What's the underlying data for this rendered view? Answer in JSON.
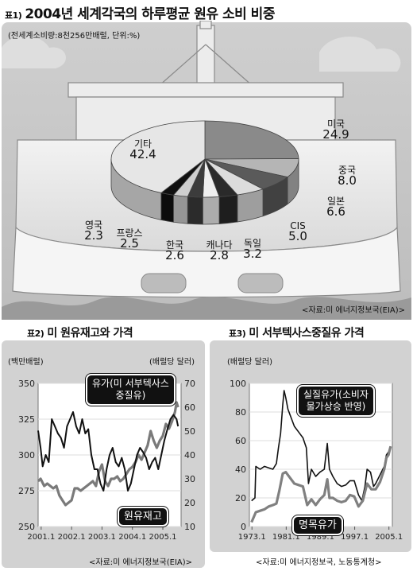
{
  "chart1": {
    "number": "표1)",
    "title": "2004년 세계각국의 하루평균 원유 소비 비중",
    "subtitle": "(전세계소비량:8천256만배럴, 단위:%)",
    "source": "<자료:미 에너지정보국(EIA)>"
  },
  "chart2": {
    "number": "표2)",
    "title": "미 원유재고와 가격",
    "left_unit": "(백만배럴)",
    "right_unit": "(배럴당 달러)",
    "callout_price_line1": "유가(미 서부텍사스",
    "callout_price_line2": "중질유)",
    "callout_inventory": "원유재고",
    "source": "<자료:미 에너지정보국(EIA)>"
  },
  "chart3": {
    "number": "표3)",
    "title": "미 서부텍사스중질유 가격",
    "unit": "(배럴당 달러)",
    "callout_real_line1": "실질유가(소비자",
    "callout_real_line2": "물가상승 반영)",
    "callout_nominal": "명목유가",
    "source": "<자료:미 에너지정보국, 노동통계청>"
  },
  "chart_data": [
    {
      "type": "pie",
      "title": "2004년 세계각국의 하루평균 원유 소비 비중",
      "categories": [
        "미국",
        "중국",
        "일본",
        "CIS",
        "독일",
        "캐나다",
        "한국",
        "프랑스",
        "영국",
        "기타"
      ],
      "values": [
        24.9,
        8.0,
        6.6,
        5.0,
        3.2,
        2.8,
        2.6,
        2.5,
        2.3,
        42.4
      ],
      "value_labels": [
        "24.9",
        "8.0",
        "6.6",
        "5.0",
        "3.2",
        "2.8",
        "2.6",
        "2.5",
        "2.3",
        "42.4"
      ],
      "colors": [
        "#8a8a8a",
        "#b5b5b5",
        "#5a5a5a",
        "#dcdcdc",
        "#2a2a2a",
        "#efefef",
        "#3c3c3c",
        "#cfcfcf",
        "#101010",
        "#e6e6e6"
      ]
    },
    {
      "type": "line",
      "title": "미 원유재고와 가격",
      "x_ticks": [
        "2001.1",
        "2002.1",
        "2003.1",
        "2004.1",
        "2005.1"
      ],
      "xlim": [
        2001.0,
        2005.7
      ],
      "y_left": {
        "label": "(백만배럴)",
        "lim": [
          250,
          350
        ],
        "ticks": [
          250,
          275,
          300,
          325,
          350
        ]
      },
      "y_right": {
        "label": "(배럴당 달러)",
        "lim": [
          10,
          70
        ],
        "ticks": [
          10,
          20,
          30,
          40,
          50,
          60,
          70
        ]
      },
      "series": [
        {
          "name": "유가(미 서부텍사스 중질유)",
          "axis": "right",
          "color": "#7a7a7a",
          "points": [
            [
              2001.0,
              29
            ],
            [
              2001.08,
              30
            ],
            [
              2001.2,
              27
            ],
            [
              2001.3,
              28
            ],
            [
              2001.4,
              27
            ],
            [
              2001.5,
              26
            ],
            [
              2001.6,
              27
            ],
            [
              2001.7,
              23
            ],
            [
              2001.8,
              21
            ],
            [
              2001.9,
              19
            ],
            [
              2002.0,
              20
            ],
            [
              2002.1,
              21
            ],
            [
              2002.2,
              26
            ],
            [
              2002.3,
              26
            ],
            [
              2002.4,
              25
            ],
            [
              2002.5,
              26
            ],
            [
              2002.6,
              27
            ],
            [
              2002.7,
              28
            ],
            [
              2002.8,
              29
            ],
            [
              2002.9,
              27
            ],
            [
              2003.0,
              33
            ],
            [
              2003.1,
              36
            ],
            [
              2003.2,
              29
            ],
            [
              2003.3,
              27
            ],
            [
              2003.4,
              30
            ],
            [
              2003.5,
              30
            ],
            [
              2003.6,
              31
            ],
            [
              2003.7,
              29
            ],
            [
              2003.8,
              30
            ],
            [
              2003.9,
              32
            ],
            [
              2004.0,
              34
            ],
            [
              2004.1,
              35
            ],
            [
              2004.2,
              37
            ],
            [
              2004.3,
              40
            ],
            [
              2004.4,
              38
            ],
            [
              2004.5,
              41
            ],
            [
              2004.6,
              44
            ],
            [
              2004.7,
              50
            ],
            [
              2004.8,
              46
            ],
            [
              2004.9,
              43
            ],
            [
              2005.0,
              46
            ],
            [
              2005.1,
              48
            ],
            [
              2005.2,
              53
            ],
            [
              2005.3,
              51
            ],
            [
              2005.4,
              54
            ],
            [
              2005.5,
              58
            ],
            [
              2005.55,
              62
            ],
            [
              2005.6,
              60
            ]
          ]
        },
        {
          "name": "원유재고",
          "axis": "left",
          "color": "#111111",
          "points": [
            [
              2001.0,
              317
            ],
            [
              2001.08,
              305
            ],
            [
              2001.15,
              292
            ],
            [
              2001.25,
              300
            ],
            [
              2001.35,
              295
            ],
            [
              2001.45,
              325
            ],
            [
              2001.55,
              320
            ],
            [
              2001.65,
              315
            ],
            [
              2001.75,
              312
            ],
            [
              2001.85,
              305
            ],
            [
              2001.95,
              320
            ],
            [
              2002.05,
              325
            ],
            [
              2002.15,
              330
            ],
            [
              2002.25,
              320
            ],
            [
              2002.35,
              315
            ],
            [
              2002.45,
              325
            ],
            [
              2002.55,
              315
            ],
            [
              2002.65,
              318
            ],
            [
              2002.75,
              300
            ],
            [
              2002.85,
              290
            ],
            [
              2002.95,
              290
            ],
            [
              2003.05,
              280
            ],
            [
              2003.15,
              275
            ],
            [
              2003.25,
              290
            ],
            [
              2003.35,
              300
            ],
            [
              2003.45,
              305
            ],
            [
              2003.55,
              295
            ],
            [
              2003.65,
              292
            ],
            [
              2003.75,
              298
            ],
            [
              2003.85,
              290
            ],
            [
              2003.95,
              275
            ],
            [
              2004.05,
              280
            ],
            [
              2004.15,
              290
            ],
            [
              2004.25,
              300
            ],
            [
              2004.35,
              305
            ],
            [
              2004.45,
              302
            ],
            [
              2004.55,
              298
            ],
            [
              2004.65,
              290
            ],
            [
              2004.75,
              295
            ],
            [
              2004.85,
              298
            ],
            [
              2004.95,
              290
            ],
            [
              2005.05,
              300
            ],
            [
              2005.15,
              310
            ],
            [
              2005.25,
              318
            ],
            [
              2005.35,
              325
            ],
            [
              2005.45,
              328
            ],
            [
              2005.55,
              325
            ],
            [
              2005.6,
              320
            ]
          ]
        }
      ]
    },
    {
      "type": "line",
      "title": "미 서부텍사스중질유 가격",
      "x_ticks": [
        "1973.1",
        "1981.1",
        "1989.1",
        "1997.1",
        "2005.1"
      ],
      "xlim": [
        1972.5,
        2005.9
      ],
      "ylabel": "(배럴당 달러)",
      "ylim": [
        0,
        100
      ],
      "y_ticks": [
        0,
        20,
        40,
        60,
        80,
        100
      ],
      "series": [
        {
          "name": "실질유가(소비자 물가상승 반영)",
          "color": "#111111",
          "points": [
            [
              1973.0,
              18
            ],
            [
              1973.8,
              20
            ],
            [
              1974.0,
              42
            ],
            [
              1975.0,
              40
            ],
            [
              1976.0,
              42
            ],
            [
              1977.0,
              41
            ],
            [
              1978.0,
              40
            ],
            [
              1978.8,
              44
            ],
            [
              1979.3,
              55
            ],
            [
              1979.8,
              65
            ],
            [
              1980.3,
              85
            ],
            [
              1980.6,
              95
            ],
            [
              1981.0,
              90
            ],
            [
              1981.5,
              82
            ],
            [
              1982.0,
              78
            ],
            [
              1983.0,
              70
            ],
            [
              1984.0,
              66
            ],
            [
              1985.0,
              62
            ],
            [
              1985.8,
              55
            ],
            [
              1986.3,
              30
            ],
            [
              1987.0,
              40
            ],
            [
              1988.0,
              35
            ],
            [
              1989.0,
              38
            ],
            [
              1990.0,
              40
            ],
            [
              1990.7,
              58
            ],
            [
              1991.2,
              40
            ],
            [
              1992.0,
              35
            ],
            [
              1993.0,
              30
            ],
            [
              1994.0,
              28
            ],
            [
              1995.0,
              29
            ],
            [
              1996.0,
              32
            ],
            [
              1997.0,
              32
            ],
            [
              1998.0,
              22
            ],
            [
              1998.8,
              18
            ],
            [
              1999.5,
              28
            ],
            [
              2000.0,
              40
            ],
            [
              2000.8,
              38
            ],
            [
              2001.5,
              28
            ],
            [
              2002.0,
              30
            ],
            [
              2003.0,
              36
            ],
            [
              2004.0,
              42
            ],
            [
              2004.5,
              50
            ],
            [
              2005.0,
              52
            ],
            [
              2005.5,
              56
            ]
          ]
        },
        {
          "name": "명목유가",
          "color": "#808080",
          "points": [
            [
              1973.0,
              3
            ],
            [
              1974.0,
              10
            ],
            [
              1975.0,
              11
            ],
            [
              1976.0,
              12
            ],
            [
              1977.0,
              14
            ],
            [
              1978.0,
              15
            ],
            [
              1978.8,
              16
            ],
            [
              1979.5,
              25
            ],
            [
              1980.3,
              37
            ],
            [
              1981.0,
              38
            ],
            [
              1982.0,
              34
            ],
            [
              1983.0,
              30
            ],
            [
              1984.0,
              29
            ],
            [
              1985.0,
              28
            ],
            [
              1986.0,
              15
            ],
            [
              1987.0,
              19
            ],
            [
              1988.0,
              15
            ],
            [
              1989.0,
              19
            ],
            [
              1990.0,
              22
            ],
            [
              1990.7,
              33
            ],
            [
              1991.2,
              20
            ],
            [
              1992.0,
              20
            ],
            [
              1993.0,
              18
            ],
            [
              1994.0,
              17
            ],
            [
              1995.0,
              18
            ],
            [
              1996.0,
              22
            ],
            [
              1997.0,
              21
            ],
            [
              1998.0,
              14
            ],
            [
              1999.0,
              18
            ],
            [
              2000.0,
              30
            ],
            [
              2001.0,
              26
            ],
            [
              2002.0,
              26
            ],
            [
              2003.0,
              31
            ],
            [
              2004.0,
              40
            ],
            [
              2004.5,
              48
            ],
            [
              2005.0,
              50
            ],
            [
              2005.5,
              56
            ]
          ]
        }
      ]
    }
  ]
}
